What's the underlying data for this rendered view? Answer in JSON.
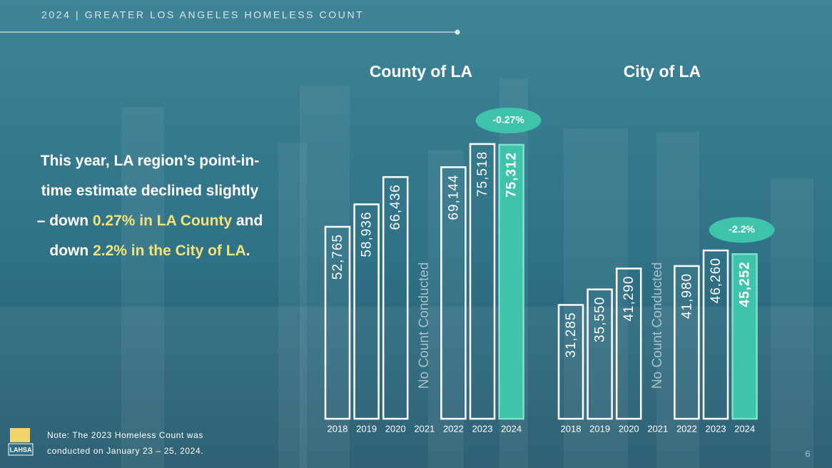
{
  "header": "2024 | GREATER LOS ANGELES HOMELESS COUNT",
  "summary": [
    "This year, LA region’s point-in-time estimate declined slightly – down ",
    "0.27% in LA County",
    " and down ",
    "2.2% in the City of LA",
    "."
  ],
  "summary_colors": [
    "#ffffff",
    "#f3e27a",
    "#ffffff",
    "#f3e27a",
    "#ffffff"
  ],
  "note": [
    "Note: The 2023 Homeless Count was",
    "conducted on January 23 – 25, 2024."
  ],
  "logo_text": "LAHSA",
  "page_number": "6",
  "chart_data": [
    {
      "type": "bar",
      "title": "County of LA",
      "categories": [
        "2018",
        "2019",
        "2020",
        "2021",
        "2022",
        "2023",
        "2024"
      ],
      "values": [
        52765,
        58936,
        66436,
        null,
        69144,
        75518,
        75312
      ],
      "value_labels": [
        "52,765",
        "58,936",
        "66,436",
        null,
        "69,144",
        "75,518",
        "75,312"
      ],
      "colors": [
        "#ffffff",
        "#ffffff",
        "#ffffff",
        "#ffffff",
        "#ffffff",
        "#ffffff",
        "#3fc3aa"
      ],
      "no_data_label": "No Count Conducted",
      "annotation": "-0.27%",
      "ylim": [
        0,
        100000
      ]
    },
    {
      "type": "bar",
      "title": "City of LA",
      "categories": [
        "2018",
        "2019",
        "2020",
        "2021",
        "2022",
        "2023",
        "2024"
      ],
      "values": [
        31285,
        35550,
        41290,
        null,
        41980,
        46260,
        45252
      ],
      "value_labels": [
        "31,285",
        "35,550",
        "41,290",
        null,
        "41,980",
        "46,260",
        "45,252"
      ],
      "colors": [
        "#ffffff",
        "#ffffff",
        "#ffffff",
        "#ffffff",
        "#ffffff",
        "#ffffff",
        "#3fc3aa"
      ],
      "no_data_label": "No Count Conducted",
      "annotation": "-2.2%",
      "ylim": [
        0,
        100000
      ]
    }
  ]
}
